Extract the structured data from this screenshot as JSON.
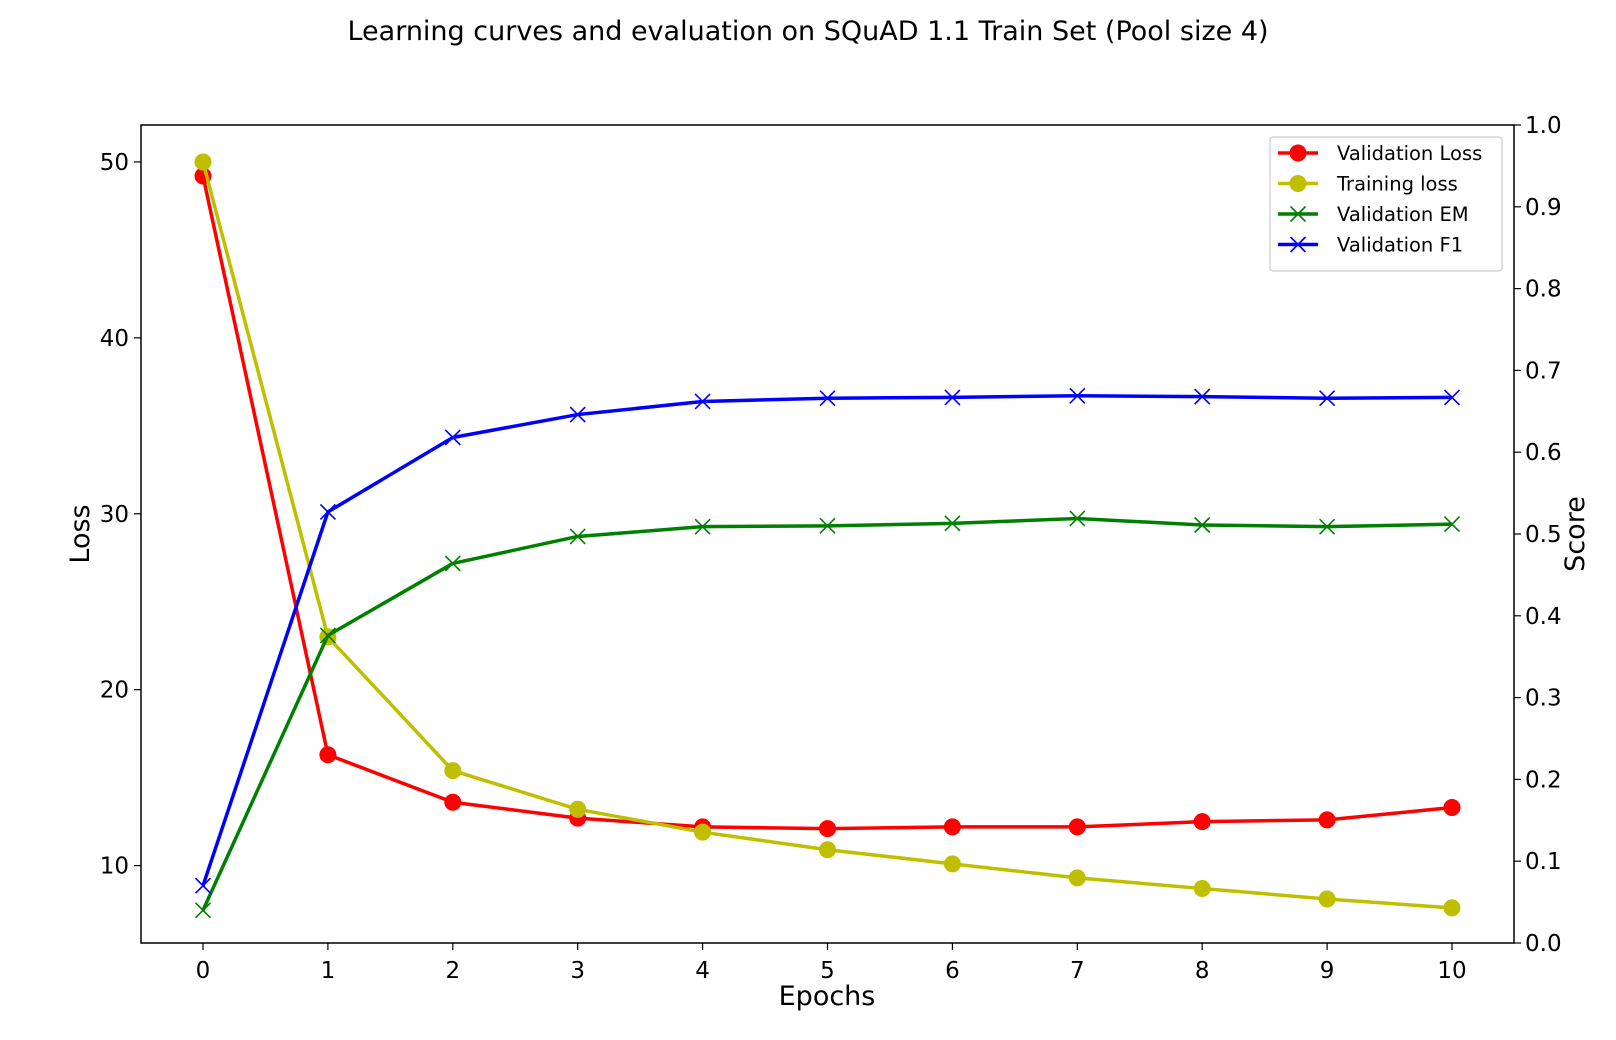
{
  "chart_data": {
    "type": "line",
    "title": "Learning curves and evaluation on SQuAD 1.1 Train Set (Pool size 4)",
    "xlabel": "Epochs",
    "ylabel_left": "Loss",
    "ylabel_right": "Score",
    "x": [
      0,
      1,
      2,
      3,
      4,
      5,
      6,
      7,
      8,
      9,
      10
    ],
    "x_ticks": [
      "0",
      "1",
      "2",
      "3",
      "4",
      "5",
      "6",
      "7",
      "8",
      "9",
      "10"
    ],
    "ylim_left": [
      5.6,
      52.1
    ],
    "yticks_left": [
      "10",
      "20",
      "30",
      "40",
      "50"
    ],
    "ylim_right": [
      0.0,
      1.0
    ],
    "yticks_right": [
      "0.0",
      "0.1",
      "0.2",
      "0.3",
      "0.4",
      "0.5",
      "0.6",
      "0.7",
      "0.8",
      "0.9",
      "1.0"
    ],
    "grid": false,
    "legend_position": "top-right",
    "series": [
      {
        "name": "Validation Loss",
        "axis": "left",
        "color": "#ff0000",
        "marker": "circle",
        "values": [
          49.2,
          16.3,
          13.6,
          12.7,
          12.2,
          12.1,
          12.2,
          12.2,
          12.5,
          12.6,
          13.3
        ]
      },
      {
        "name": "Training loss",
        "axis": "left",
        "color": "#bfbf00",
        "marker": "circle",
        "values": [
          50.0,
          23.0,
          15.4,
          13.2,
          11.9,
          10.9,
          10.1,
          9.3,
          8.7,
          8.1,
          7.6
        ]
      },
      {
        "name": "Validation EM",
        "axis": "right",
        "color": "#008000",
        "marker": "x",
        "values": [
          0.04,
          0.376,
          0.464,
          0.497,
          0.509,
          0.51,
          0.513,
          0.519,
          0.511,
          0.509,
          0.512
        ]
      },
      {
        "name": "Validation F1",
        "axis": "right",
        "color": "#0000ff",
        "marker": "x",
        "values": [
          0.07,
          0.527,
          0.618,
          0.646,
          0.662,
          0.666,
          0.667,
          0.669,
          0.668,
          0.666,
          0.667
        ]
      }
    ]
  }
}
